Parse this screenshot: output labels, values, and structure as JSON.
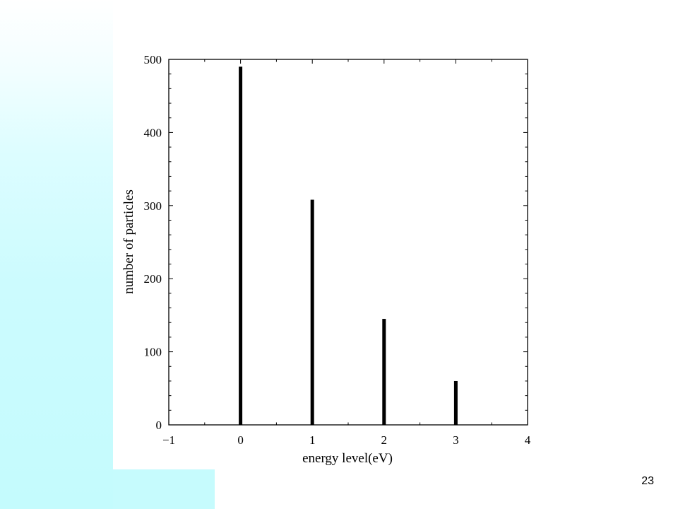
{
  "slide": {
    "number": "23"
  },
  "colors": {
    "band": "#c6fbfd",
    "bar": "#000000",
    "axis": "#000000"
  },
  "chart_data": {
    "type": "bar",
    "title": "",
    "xlabel": "energy level(eV)",
    "ylabel": "number of particles",
    "x": [
      0,
      1,
      2,
      3
    ],
    "values": [
      490,
      308,
      145,
      60
    ],
    "xlim": [
      -1,
      4
    ],
    "ylim": [
      0,
      500
    ],
    "xticks": [
      -1,
      0,
      1,
      2,
      3,
      4
    ],
    "xtick_labels": [
      "−1",
      "0",
      "1",
      "2",
      "3",
      "4"
    ],
    "yticks": [
      0,
      100,
      200,
      300,
      400,
      500
    ],
    "ytick_labels": [
      "0",
      "100",
      "200",
      "300",
      "400",
      "500"
    ],
    "grid": false,
    "legend": "none"
  }
}
